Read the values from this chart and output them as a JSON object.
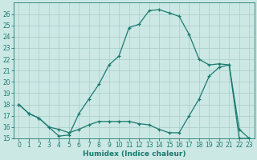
{
  "xlabel": "Humidex (Indice chaleur)",
  "curve1_x": [
    0,
    1,
    2,
    3,
    4,
    5,
    6,
    7,
    8,
    9,
    10,
    11,
    12,
    13,
    14,
    15,
    16,
    17,
    18,
    19,
    20,
    21,
    22,
    23
  ],
  "curve1_y": [
    18.0,
    17.2,
    16.8,
    16.0,
    15.2,
    15.3,
    17.2,
    18.5,
    19.8,
    21.5,
    22.3,
    24.8,
    25.1,
    26.3,
    26.4,
    26.1,
    25.8,
    24.2,
    22.0,
    21.5,
    21.6,
    21.5,
    15.8,
    15.0
  ],
  "curve2_x": [
    0,
    1,
    2,
    3,
    4,
    5,
    6,
    7,
    8,
    9,
    10,
    11,
    12,
    13,
    14,
    15,
    16,
    17,
    18,
    19,
    20,
    21,
    22,
    23
  ],
  "curve2_y": [
    18.0,
    17.2,
    16.8,
    16.0,
    15.8,
    15.5,
    15.8,
    16.2,
    16.5,
    16.5,
    16.5,
    16.5,
    16.3,
    16.2,
    15.8,
    15.5,
    15.5,
    17.0,
    18.5,
    20.5,
    21.3,
    21.5,
    15.0,
    15.0
  ],
  "line_color": "#1a7a6e",
  "bg_color": "#cce8e5",
  "grid_color": "#a8ccc9",
  "ylim": [
    15,
    27
  ],
  "xlim": [
    -0.5,
    23.5
  ],
  "yticks": [
    15,
    16,
    17,
    18,
    19,
    20,
    21,
    22,
    23,
    24,
    25,
    26
  ],
  "xticks": [
    0,
    1,
    2,
    3,
    4,
    5,
    6,
    7,
    8,
    9,
    10,
    11,
    12,
    13,
    14,
    15,
    16,
    17,
    18,
    19,
    20,
    21,
    22,
    23
  ],
  "tick_fontsize": 5.5,
  "label_fontsize": 6.5
}
